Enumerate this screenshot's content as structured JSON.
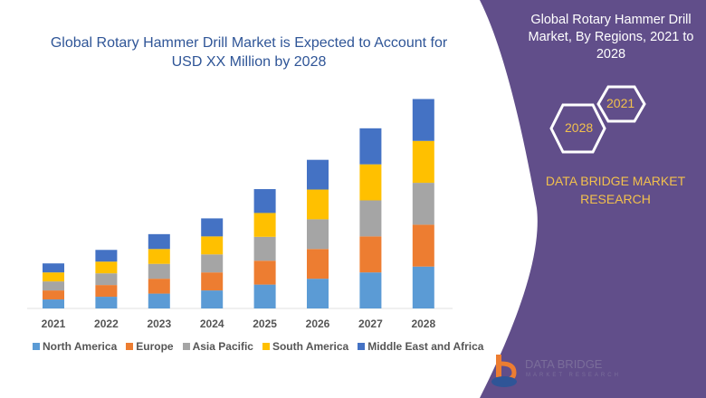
{
  "title": "Global Rotary Hammer Drill Market is Expected to Account for USD XX Million by 2028",
  "panel": {
    "title": "Global Rotary Hammer Drill Market, By Regions, 2021 to 2028",
    "hex_years": [
      "2021",
      "2028"
    ],
    "brand": "DATA BRIDGE MARKET RESEARCH",
    "logo_text": "DATA BRIDGE",
    "logo_sub": "MARKET RESEARCH",
    "color": "#614e8a"
  },
  "chart_data": {
    "type": "bar",
    "stacked": true,
    "title": "Global Rotary Hammer Drill Market is Expected to Account for USD XX Million by 2028",
    "categories": [
      "2021",
      "2022",
      "2023",
      "2024",
      "2025",
      "2026",
      "2027",
      "2028"
    ],
    "series": [
      {
        "name": "North America",
        "color": "#5b9bd5",
        "values": [
          1.0,
          1.3,
          1.65,
          2.0,
          2.65,
          3.3,
          4.0,
          4.65
        ]
      },
      {
        "name": "Europe",
        "color": "#ed7d31",
        "values": [
          1.0,
          1.3,
          1.65,
          2.0,
          2.65,
          3.3,
          4.0,
          4.65
        ]
      },
      {
        "name": "Asia Pacific",
        "color": "#a5a5a5",
        "values": [
          1.0,
          1.3,
          1.65,
          2.0,
          2.65,
          3.3,
          4.0,
          4.65
        ]
      },
      {
        "name": "South America",
        "color": "#ffc000",
        "values": [
          1.0,
          1.3,
          1.65,
          2.0,
          2.65,
          3.3,
          4.0,
          4.65
        ]
      },
      {
        "name": "Middle East and Africa",
        "color": "#4472c4",
        "values": [
          1.0,
          1.3,
          1.65,
          2.0,
          2.65,
          3.3,
          4.0,
          4.65
        ]
      }
    ],
    "ylim": [
      0,
      24
    ],
    "y_axis_visible": false,
    "grid": false,
    "legend_position": "bottom"
  }
}
